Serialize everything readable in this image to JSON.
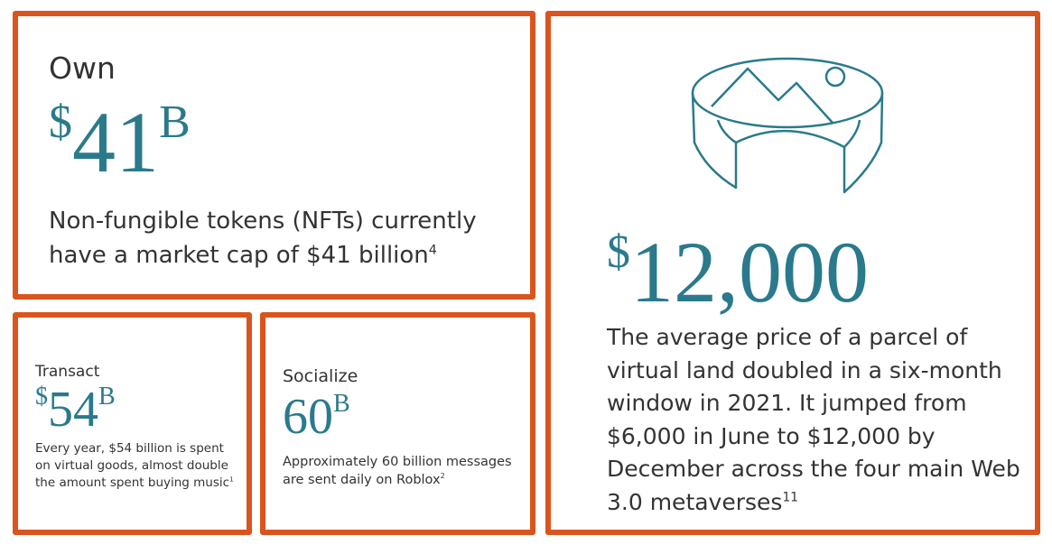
{
  "panels": [
    {
      "label": "Own",
      "prefix": "$",
      "number": "41",
      "suffix": "B",
      "description": "Non-fungible tokens (NFTs) currently have a market cap of $41 billion",
      "note": "4"
    },
    {
      "label": "Transact",
      "prefix": "$",
      "number": "54",
      "suffix": "B",
      "description": "Every year, $54 billion is spent on virtual goods, almost double the amount spent buying music",
      "note": "1"
    },
    {
      "label": "Socialize",
      "number": "60",
      "suffix": "B",
      "description": "Approximately 60 billion messages are sent daily on Roblox",
      "note": "2"
    },
    {
      "prefix": "$",
      "number": "12,000",
      "description": "The average price of a parcel of virtual land doubled in a six-month window in 2021. It jumped from $6,000 in June to $12,000 by December across the four main Web 3.0 metaverses",
      "note": "11"
    }
  ]
}
